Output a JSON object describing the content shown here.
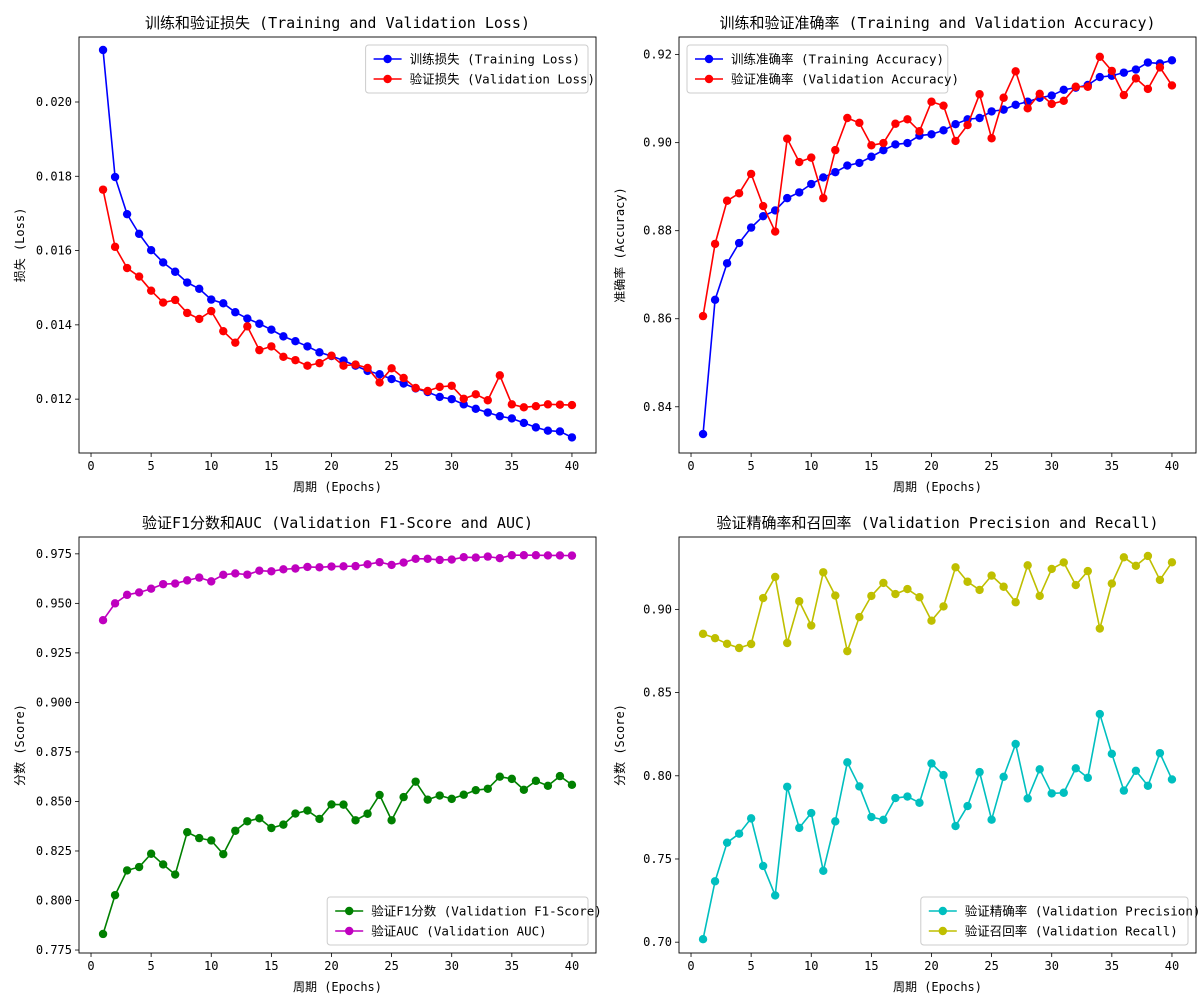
{
  "charts": [
    {
      "type": "line",
      "title": "训练和验证损失 (Training and Validation Loss)",
      "xlabel": "周期 (Epochs)",
      "ylabel": "损失 (Loss)",
      "xlim": [
        -1,
        42
      ],
      "ylim": [
        0.01055,
        0.02175
      ],
      "xticks": [
        0,
        5,
        10,
        15,
        20,
        25,
        30,
        35,
        40
      ],
      "yticks": [
        0.012,
        0.014,
        0.016,
        0.018,
        0.02
      ],
      "ytick_labels": [
        "0.012",
        "0.014",
        "0.016",
        "0.018",
        "0.020"
      ],
      "legend_position": "top-right",
      "series": [
        {
          "name": "训练损失 (Training Loss)",
          "color": "#0000ff",
          "values": [
            0.0214,
            0.01798,
            0.01698,
            0.01645,
            0.01601,
            0.01568,
            0.01543,
            0.01514,
            0.01497,
            0.01468,
            0.01458,
            0.01434,
            0.01417,
            0.01403,
            0.01387,
            0.01369,
            0.01356,
            0.01342,
            0.01326,
            0.01316,
            0.01304,
            0.0129,
            0.01276,
            0.01267,
            0.01254,
            0.01242,
            0.01229,
            0.01219,
            0.01206,
            0.012,
            0.01186,
            0.01174,
            0.01164,
            0.01154,
            0.01148,
            0.01136,
            0.01124,
            0.01115,
            0.01113,
            0.01097
          ]
        },
        {
          "name": "验证损失 (Validation Loss)",
          "color": "#ff0000",
          "values": [
            0.01764,
            0.0161,
            0.01553,
            0.0153,
            0.01492,
            0.0146,
            0.01467,
            0.01432,
            0.01416,
            0.01437,
            0.01383,
            0.01352,
            0.01396,
            0.01332,
            0.01342,
            0.01314,
            0.01305,
            0.0129,
            0.01297,
            0.01317,
            0.0129,
            0.01293,
            0.01284,
            0.01245,
            0.01283,
            0.01257,
            0.0123,
            0.01222,
            0.01233,
            0.01236,
            0.01201,
            0.01213,
            0.01197,
            0.01264,
            0.01186,
            0.01178,
            0.01181,
            0.01186,
            0.01185,
            0.01184
          ]
        }
      ]
    },
    {
      "type": "line",
      "title": "训练和验证准确率 (Training and Validation Accuracy)",
      "xlabel": "周期 (Epochs)",
      "ylabel": "准确率 (Accuracy)",
      "xlim": [
        -1,
        42
      ],
      "ylim": [
        0.8295,
        0.924
      ],
      "xticks": [
        0,
        5,
        10,
        15,
        20,
        25,
        30,
        35,
        40
      ],
      "yticks": [
        0.84,
        0.86,
        0.88,
        0.9,
        0.92
      ],
      "ytick_labels": [
        "0.84",
        "0.86",
        "0.88",
        "0.90",
        "0.92"
      ],
      "legend_position": "top-left",
      "series": [
        {
          "name": "训练准确率 (Training Accuracy)",
          "color": "#0000ff",
          "values": [
            0.8338,
            0.8643,
            0.8726,
            0.8772,
            0.8807,
            0.8833,
            0.8846,
            0.8874,
            0.8887,
            0.8906,
            0.8921,
            0.8933,
            0.8948,
            0.8954,
            0.8968,
            0.8983,
            0.8996,
            0.8999,
            0.9016,
            0.9019,
            0.9028,
            0.9042,
            0.9053,
            0.9056,
            0.9071,
            0.9075,
            0.9086,
            0.9093,
            0.9102,
            0.9107,
            0.912,
            0.9125,
            0.9131,
            0.9149,
            0.9152,
            0.9159,
            0.9166,
            0.9182,
            0.918,
            0.9187
          ]
        },
        {
          "name": "验证准确率 (Validation Accuracy)",
          "color": "#ff0000",
          "values": [
            0.8606,
            0.877,
            0.8868,
            0.8885,
            0.8929,
            0.8856,
            0.8798,
            0.9009,
            0.8956,
            0.8966,
            0.8874,
            0.8983,
            0.9056,
            0.9045,
            0.8994,
            0.8999,
            0.9043,
            0.9053,
            0.9026,
            0.9093,
            0.9084,
            0.9004,
            0.904,
            0.911,
            0.901,
            0.9102,
            0.9162,
            0.9078,
            0.9111,
            0.9088,
            0.9095,
            0.9127,
            0.9127,
            0.9195,
            0.9163,
            0.9108,
            0.9146,
            0.9122,
            0.9171,
            0.913
          ]
        }
      ]
    },
    {
      "type": "line",
      "title": "验证F1分数和AUC (Validation F1-Score and AUC)",
      "xlabel": "周期 (Epochs)",
      "ylabel": "分数 (Score)",
      "xlim": [
        -1,
        42
      ],
      "ylim": [
        0.7735,
        0.9835
      ],
      "xticks": [
        0,
        5,
        10,
        15,
        20,
        25,
        30,
        35,
        40
      ],
      "yticks": [
        0.775,
        0.8,
        0.825,
        0.85,
        0.875,
        0.9,
        0.925,
        0.95,
        0.975
      ],
      "ytick_labels": [
        "0.775",
        "0.800",
        "0.825",
        "0.850",
        "0.875",
        "0.900",
        "0.925",
        "0.950",
        "0.975"
      ],
      "legend_position": "bottom-right",
      "series": [
        {
          "name": "验证F1分数 (Validation F1-Score)",
          "color": "#008000",
          "values": [
            0.7831,
            0.8027,
            0.8152,
            0.8169,
            0.8236,
            0.8182,
            0.8131,
            0.8345,
            0.8315,
            0.8303,
            0.8234,
            0.8352,
            0.84,
            0.8415,
            0.8366,
            0.8383,
            0.8439,
            0.8454,
            0.8412,
            0.8485,
            0.8484,
            0.8405,
            0.8438,
            0.8533,
            0.8405,
            0.8522,
            0.86,
            0.8509,
            0.853,
            0.8513,
            0.8534,
            0.8557,
            0.8564,
            0.8625,
            0.8614,
            0.8559,
            0.8604,
            0.8579,
            0.8628,
            0.8584
          ]
        },
        {
          "name": "验证AUC (Validation AUC)",
          "color": "#bf00bf",
          "values": [
            0.9415,
            0.95,
            0.9543,
            0.9555,
            0.9574,
            0.9597,
            0.96,
            0.9616,
            0.963,
            0.9611,
            0.9644,
            0.9651,
            0.9645,
            0.9665,
            0.9662,
            0.9672,
            0.9676,
            0.9684,
            0.9682,
            0.9686,
            0.9687,
            0.9688,
            0.9697,
            0.9708,
            0.9694,
            0.9706,
            0.9725,
            0.9725,
            0.9719,
            0.9721,
            0.9733,
            0.9731,
            0.9736,
            0.9728,
            0.9743,
            0.9743,
            0.9743,
            0.9742,
            0.9742,
            0.9741
          ]
        }
      ]
    },
    {
      "type": "line",
      "title": "验证精确率和召回率 (Validation Precision and Recall)",
      "xlabel": "周期 (Epochs)",
      "ylabel": "分数 (Score)",
      "xlim": [
        -1,
        42
      ],
      "ylim": [
        0.6935,
        0.9435
      ],
      "xticks": [
        0,
        5,
        10,
        15,
        20,
        25,
        30,
        35,
        40
      ],
      "yticks": [
        0.7,
        0.75,
        0.8,
        0.85,
        0.9
      ],
      "ytick_labels": [
        "0.70",
        "0.75",
        "0.80",
        "0.85",
        "0.90"
      ],
      "legend_position": "bottom-right",
      "series": [
        {
          "name": "验证精确率 (Validation Precision)",
          "color": "#00bfbf",
          "values": [
            0.7018,
            0.7366,
            0.7598,
            0.7652,
            0.7744,
            0.7458,
            0.7281,
            0.7934,
            0.7687,
            0.7776,
            0.7429,
            0.7726,
            0.8081,
            0.7936,
            0.7752,
            0.7735,
            0.7866,
            0.7875,
            0.7838,
            0.8074,
            0.8004,
            0.7698,
            0.7818,
            0.8022,
            0.7736,
            0.7994,
            0.8191,
            0.7864,
            0.8039,
            0.7894,
            0.7898,
            0.8045,
            0.7988,
            0.8371,
            0.8132,
            0.7911,
            0.803,
            0.794,
            0.8136,
            0.7978
          ]
        },
        {
          "name": "验证召回率 (Validation Recall)",
          "color": "#bfbf00",
          "values": [
            0.8853,
            0.8827,
            0.8793,
            0.8768,
            0.8792,
            0.9068,
            0.9195,
            0.8798,
            0.9049,
            0.8903,
            0.9223,
            0.9083,
            0.8749,
            0.8954,
            0.9081,
            0.9159,
            0.9092,
            0.9122,
            0.9073,
            0.8932,
            0.9018,
            0.9253,
            0.9166,
            0.9117,
            0.9203,
            0.9136,
            0.9043,
            0.9265,
            0.9081,
            0.9243,
            0.9282,
            0.9146,
            0.923,
            0.8885,
            0.9155,
            0.9313,
            0.9262,
            0.9321,
            0.9177,
            0.9283
          ]
        }
      ]
    }
  ]
}
